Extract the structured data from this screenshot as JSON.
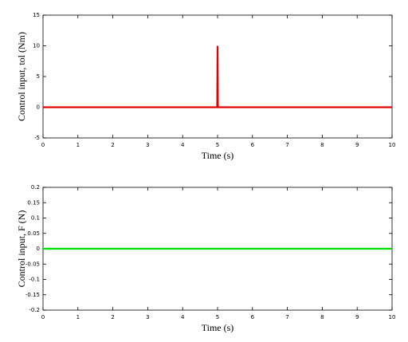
{
  "chart_data": [
    {
      "type": "line",
      "xlabel": "Time (s)",
      "ylabel": "Control input, tol (Nm)",
      "x": [
        0,
        4.99,
        5,
        5.01,
        10
      ],
      "values": [
        0,
        0,
        10,
        0,
        0
      ],
      "color": "#e00000",
      "xlim": [
        0,
        10
      ],
      "xticks": [
        0,
        1,
        2,
        3,
        4,
        5,
        6,
        7,
        8,
        9,
        10
      ],
      "ylim": [
        -5,
        15
      ],
      "yticks": [
        -5,
        0,
        5,
        10,
        15
      ]
    },
    {
      "type": "line",
      "xlabel": "Time (s)",
      "ylabel": "Control input, F (N)",
      "x": [
        0,
        10
      ],
      "values": [
        0,
        0
      ],
      "color": "#00e000",
      "xlim": [
        0,
        10
      ],
      "xticks": [
        0,
        1,
        2,
        3,
        4,
        5,
        6,
        7,
        8,
        9,
        10
      ],
      "ylim": [
        -0.2,
        0.2
      ],
      "yticks": [
        -0.2,
        -0.15,
        -0.1,
        -0.05,
        0,
        0.05,
        0.1,
        0.15,
        0.2
      ]
    }
  ]
}
